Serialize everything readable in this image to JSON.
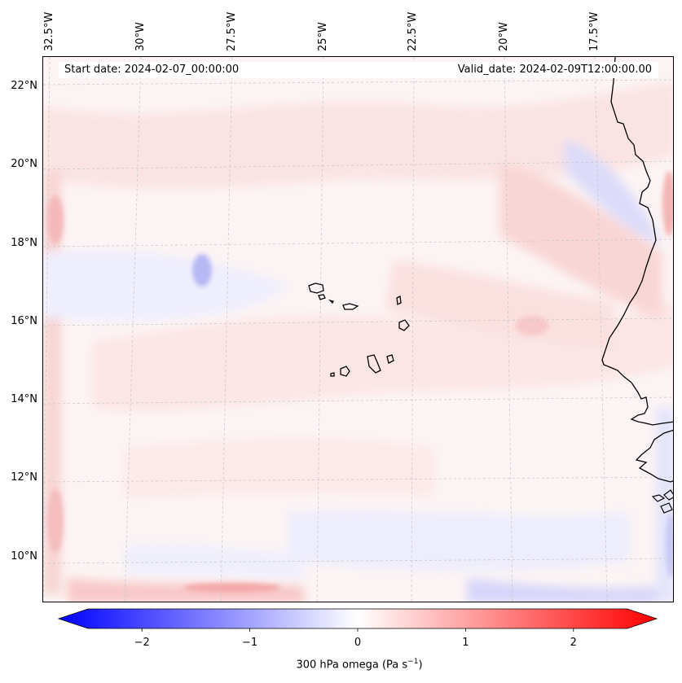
{
  "header": {
    "start_date": "Start date: 2024-02-07_00:00:00",
    "valid_date": "Valid_date: 2024-02-09T12:00:00.00"
  },
  "map": {
    "longitude_labels": [
      "32.5°W",
      "30°W",
      "27.5°W",
      "25°W",
      "22.5°W",
      "20°W",
      "17.5°W"
    ],
    "latitude_labels": [
      "22°N",
      "20°N",
      "18°N",
      "16°N",
      "14°N",
      "12°N",
      "10°N"
    ],
    "extent": {
      "lon_min": -32.6,
      "lon_max": -15.2,
      "lat_min": 8.9,
      "lat_max": 22.8
    },
    "field": "300 hPa omega"
  },
  "colorbar": {
    "label_prefix": "300 hPa omega (Pa s",
    "label_exponent": "−1",
    "label_suffix": ")",
    "ticks": [
      "−2",
      "−1",
      "0",
      "1",
      "2"
    ],
    "tick_values": [
      -2,
      -1,
      0,
      1,
      2
    ],
    "vmin": -2.5,
    "vmax": 2.5,
    "cmap": "bwr",
    "color_min": "#0000ff",
    "color_mid": "#ffffff",
    "color_max": "#ff0000"
  },
  "colors": {
    "coastline": "#000000",
    "gridline": "#c8c8c8",
    "background": "#ffffff"
  }
}
